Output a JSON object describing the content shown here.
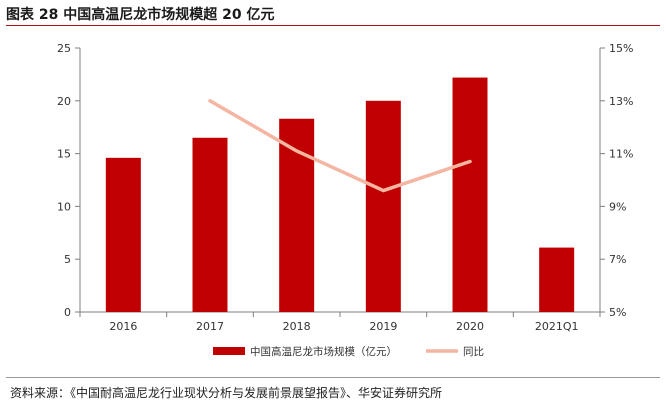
{
  "figure": {
    "title": "图表 28 中国高温尼龙市场规模超 20 亿元",
    "source": "资料来源：《中国耐高温尼龙行业现状分析与发展前景展望报告》、华安证券研究所"
  },
  "chart_data": {
    "type": "bar",
    "categories": [
      "2016",
      "2017",
      "2018",
      "2019",
      "2020",
      "2021Q1"
    ],
    "series": [
      {
        "name": "中国高温尼龙市场规模（亿元）",
        "type": "bar",
        "axis": "left",
        "color": "#c00000",
        "values": [
          14.6,
          16.5,
          18.3,
          20.0,
          22.2,
          6.1
        ]
      },
      {
        "name": "同比",
        "type": "line",
        "axis": "right",
        "color": "#f4b6a2",
        "values": [
          null,
          0.13,
          0.111,
          0.096,
          0.107,
          null
        ]
      }
    ],
    "y_left": {
      "min": 0,
      "max": 25,
      "ticks": [
        "0",
        "5",
        "10",
        "15",
        "20",
        "25"
      ]
    },
    "y_right": {
      "min": 0.05,
      "max": 0.15,
      "ticks": [
        "5%",
        "7%",
        "9%",
        "11%",
        "13%",
        "15%"
      ]
    },
    "grid": false,
    "legend": "bottom"
  }
}
